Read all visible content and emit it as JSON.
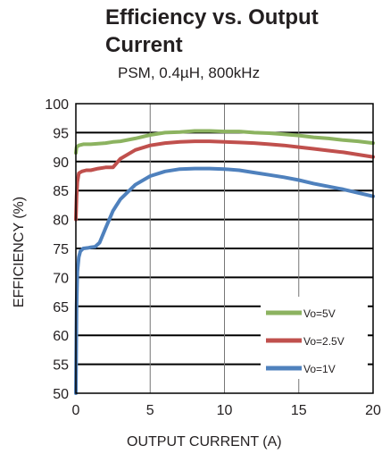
{
  "chart_data": {
    "type": "line",
    "title": "Efficiency vs. Output Current",
    "subtitle": "PSM, 0.4µH, 800kHz",
    "xlabel": "OUTPUT CURRENT (A)",
    "ylabel": "EFFICIENCY (%)",
    "xlim": [
      0,
      20
    ],
    "ylim": [
      50,
      100
    ],
    "xticks": [
      0,
      5,
      10,
      15,
      20
    ],
    "yticks": [
      50,
      55,
      60,
      65,
      70,
      75,
      80,
      85,
      90,
      95,
      100
    ],
    "grid": true,
    "legend_position": "bottom-right",
    "series": [
      {
        "name": "Vo=5V",
        "color": "#8cb360",
        "x": [
          0,
          0.05,
          0.2,
          0.5,
          1.0,
          1.5,
          2.0,
          2.5,
          3,
          4,
          5,
          6,
          7,
          8,
          9,
          10,
          11,
          12,
          13,
          14,
          15,
          16,
          17,
          18,
          19,
          20
        ],
        "y": [
          91.5,
          92.5,
          92.8,
          93.0,
          93.0,
          93.1,
          93.2,
          93.4,
          93.5,
          94.0,
          94.6,
          95.0,
          95.1,
          95.3,
          95.3,
          95.2,
          95.2,
          95.0,
          94.9,
          94.7,
          94.5,
          94.2,
          94.0,
          93.7,
          93.5,
          93.2
        ]
      },
      {
        "name": "Vo=2.5V",
        "color": "#c0504d",
        "x": [
          0,
          0.05,
          0.1,
          0.2,
          0.4,
          0.7,
          1.0,
          1.5,
          2.0,
          2.5,
          3,
          4,
          5,
          6,
          7,
          8,
          9,
          10,
          11,
          12,
          13,
          14,
          15,
          16,
          17,
          18,
          19,
          20
        ],
        "y": [
          80,
          84,
          86.5,
          88.0,
          88.3,
          88.5,
          88.5,
          88.8,
          89.0,
          89.0,
          90.5,
          92.0,
          92.8,
          93.2,
          93.4,
          93.5,
          93.5,
          93.4,
          93.3,
          93.2,
          93.0,
          92.8,
          92.5,
          92.2,
          91.9,
          91.6,
          91.2,
          90.8
        ]
      },
      {
        "name": "Vo=1V",
        "color": "#4f81bd",
        "x": [
          0,
          0.05,
          0.1,
          0.2,
          0.3,
          0.5,
          0.8,
          1.0,
          1.3,
          1.6,
          2.0,
          2.5,
          3,
          4,
          5,
          6,
          7,
          8,
          9,
          10,
          11,
          12,
          13,
          14,
          15,
          16,
          17,
          18,
          19,
          20
        ],
        "y": [
          50,
          65,
          71,
          73.5,
          74.5,
          75.0,
          75.1,
          75.2,
          75.3,
          76.0,
          78.5,
          81.5,
          83.5,
          86.0,
          87.5,
          88.3,
          88.7,
          88.8,
          88.8,
          88.7,
          88.5,
          88.1,
          87.7,
          87.3,
          86.8,
          86.2,
          85.7,
          85.2,
          84.6,
          84.0
        ]
      }
    ]
  }
}
